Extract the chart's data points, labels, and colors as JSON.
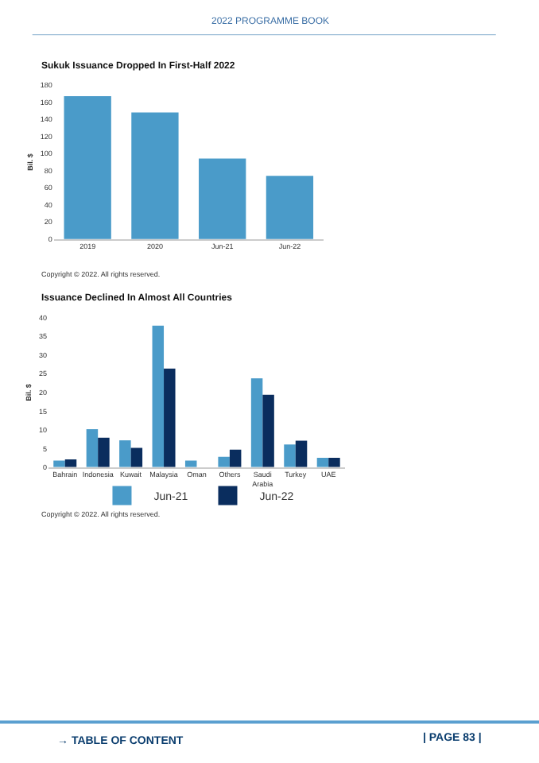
{
  "chart_data": [
    {
      "type": "bar",
      "title": "Sukuk Issuance Dropped In First-Half 2022",
      "ylabel": "Bil. $",
      "categories": [
        "2019",
        "2020",
        "Jun-21",
        "Jun-22"
      ],
      "values": [
        167,
        148,
        94,
        74
      ],
      "color": "#4a9bc9",
      "ylim": [
        0,
        180
      ],
      "yticks": [
        0,
        20,
        40,
        60,
        80,
        100,
        120,
        140,
        160,
        180
      ],
      "grid": false,
      "annotations": [
        "Copyright © 2022. All rights reserved."
      ]
    },
    {
      "type": "bar",
      "title": "Issuance Declined In Almost All Countries",
      "ylabel": "Bil. $",
      "categories": [
        "Bahrain",
        "Indonesia",
        "Kuwait",
        "Malaysia",
        "Oman",
        "Others",
        "Saudi Arabia",
        "Turkey",
        "UAE"
      ],
      "series": [
        {
          "name": "Jun-21",
          "color": "#4a9bc9",
          "values": [
            1.8,
            10.2,
            7.2,
            37.9,
            1.8,
            2.8,
            23.8,
            6.1,
            2.5
          ]
        },
        {
          "name": "Jun-22",
          "color": "#0a2d5e",
          "values": [
            2.1,
            7.9,
            5.2,
            26.4,
            null,
            4.7,
            19.4,
            7.1,
            2.5
          ]
        }
      ],
      "ylim": [
        0,
        40
      ],
      "yticks": [
        0,
        5,
        10,
        15,
        20,
        25,
        30,
        35,
        40
      ],
      "grid": false,
      "legend": "bottom",
      "annotations": [
        "Copyright © 2022. All rights reserved."
      ]
    },
    {
      "type": "other",
      "annotations": [
        "2022 PROGRAMME BOOK",
        "→ TABLE OF CONTENT",
        "| PAGE 83 |"
      ]
    }
  ]
}
